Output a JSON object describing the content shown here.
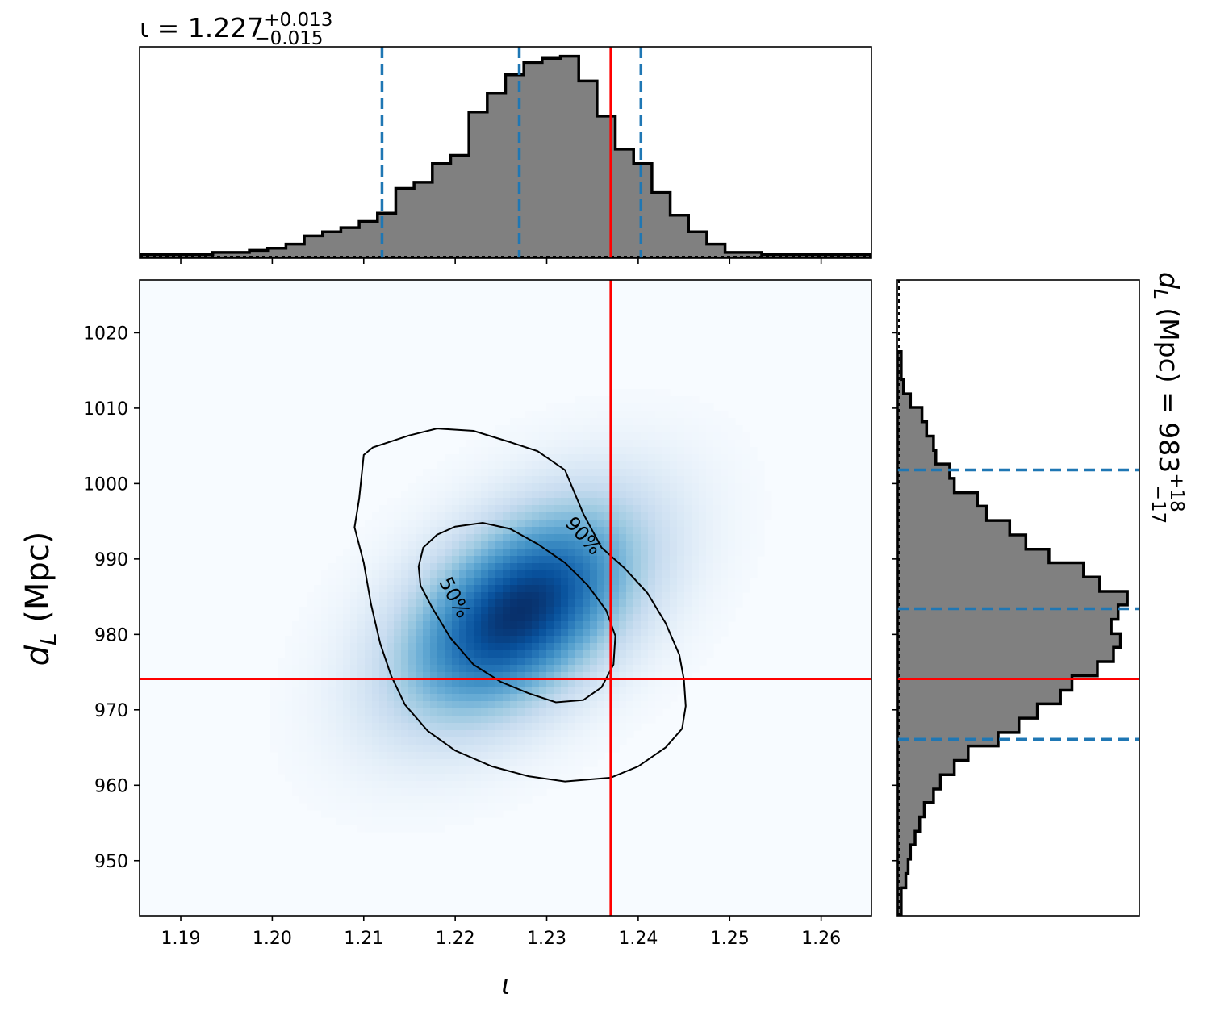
{
  "chart_data": {
    "type": "corner",
    "parameters": {
      "x": {
        "label": "ι",
        "median": 1.227,
        "plus": "+0.013",
        "minus": "−0.015",
        "title_main": "ι = 1.227"
      },
      "y": {
        "label_main": "d",
        "label_sub": "L",
        "label_unit": " (Mpc)",
        "median": 983,
        "plus": "+18",
        "minus": "−17",
        "title_main": "d",
        "title_sub": "L",
        "title_rest": " (Mpc) = 983"
      }
    },
    "xlim": [
      1.1855,
      1.2655
    ],
    "ylim": [
      942.7,
      1027.0
    ],
    "x_ticks": [
      1.19,
      1.2,
      1.21,
      1.22,
      1.23,
      1.24,
      1.25,
      1.26
    ],
    "x_tick_labels": [
      "1.19",
      "1.20",
      "1.21",
      "1.22",
      "1.23",
      "1.24",
      "1.25",
      "1.26"
    ],
    "y_ticks": [
      950,
      960,
      970,
      980,
      990,
      1000,
      1010,
      1020
    ],
    "y_tick_labels": [
      "950",
      "960",
      "970",
      "980",
      "990",
      "1000",
      "1010",
      "1020"
    ],
    "injection": {
      "x": 1.237,
      "y": 974.1,
      "color": "#ff0000"
    },
    "credible_lines_x": [
      1.212,
      1.227,
      1.2403
    ],
    "credible_lines_y": [
      966.1,
      983.4,
      1001.8
    ],
    "credible_color": "#1f77b4",
    "hist_color": "#808080",
    "density_colormap": "Blues",
    "density_mode": {
      "x": 1.227,
      "y": 983.0
    },
    "contours": [
      {
        "label": "50%",
        "points": [
          [
            1.216,
            989.0
          ],
          [
            1.2165,
            991.5
          ],
          [
            1.218,
            993.2
          ],
          [
            1.22,
            994.3
          ],
          [
            1.223,
            994.8
          ],
          [
            1.226,
            994.0
          ],
          [
            1.229,
            992.0
          ],
          [
            1.232,
            989.5
          ],
          [
            1.2345,
            986.5
          ],
          [
            1.2365,
            983.2
          ],
          [
            1.2375,
            979.8
          ],
          [
            1.2373,
            976.0
          ],
          [
            1.236,
            973.0
          ],
          [
            1.234,
            971.3
          ],
          [
            1.231,
            971.0
          ],
          [
            1.228,
            972.2
          ],
          [
            1.225,
            973.7
          ],
          [
            1.222,
            976.0
          ],
          [
            1.2195,
            979.5
          ],
          [
            1.2175,
            983.5
          ],
          [
            1.2162,
            986.5
          ]
        ]
      },
      {
        "label": "90%",
        "points": [
          [
            1.21,
            1003.8
          ],
          [
            1.211,
            1004.8
          ],
          [
            1.215,
            1006.4
          ],
          [
            1.218,
            1007.3
          ],
          [
            1.222,
            1007.0
          ],
          [
            1.226,
            1005.5
          ],
          [
            1.229,
            1004.3
          ],
          [
            1.232,
            1001.8
          ],
          [
            1.234,
            996.0
          ],
          [
            1.236,
            991.5
          ],
          [
            1.2385,
            988.8
          ],
          [
            1.241,
            985.5
          ],
          [
            1.243,
            981.5
          ],
          [
            1.2445,
            977.3
          ],
          [
            1.245,
            974.0
          ],
          [
            1.2452,
            970.5
          ],
          [
            1.2448,
            967.5
          ],
          [
            1.243,
            965.0
          ],
          [
            1.24,
            962.5
          ],
          [
            1.237,
            961.0
          ],
          [
            1.232,
            960.5
          ],
          [
            1.228,
            961.2
          ],
          [
            1.224,
            962.5
          ],
          [
            1.22,
            964.6
          ],
          [
            1.217,
            967.2
          ],
          [
            1.2145,
            970.7
          ],
          [
            1.213,
            974.5
          ],
          [
            1.2118,
            978.8
          ],
          [
            1.2108,
            984.0
          ],
          [
            1.21,
            989.5
          ],
          [
            1.209,
            994.2
          ],
          [
            1.2095,
            998.0
          ]
        ]
      }
    ],
    "x_hist": {
      "bin_edges": [
        1.1855,
        1.1875,
        1.1895,
        1.1915,
        1.1935,
        1.1955,
        1.1975,
        1.1995,
        1.2015,
        1.2035,
        1.2055,
        1.2075,
        1.2095,
        1.2115,
        1.2135,
        1.2155,
        1.2175,
        1.2195,
        1.2215,
        1.2235,
        1.2255,
        1.2275,
        1.2295,
        1.2315,
        1.2335,
        1.2355,
        1.2375,
        1.2395,
        1.2415,
        1.2435,
        1.2455,
        1.2475,
        1.2495,
        1.2515,
        1.2535,
        1.2555,
        1.2575,
        1.2595,
        1.2615,
        1.2635,
        1.2655
      ],
      "counts": [
        0.01,
        0.01,
        0.01,
        0.01,
        0.02,
        0.02,
        0.03,
        0.04,
        0.06,
        0.1,
        0.12,
        0.14,
        0.17,
        0.21,
        0.33,
        0.36,
        0.45,
        0.49,
        0.7,
        0.79,
        0.88,
        0.94,
        0.96,
        0.97,
        0.85,
        0.68,
        0.52,
        0.45,
        0.31,
        0.2,
        0.12,
        0.06,
        0.02,
        0.02,
        0.01,
        0.01,
        0.01,
        0.01,
        0.01,
        0.01
      ]
    },
    "y_hist": {
      "bin_edges": [
        942.7,
        944.6,
        946.4,
        948.3,
        950.2,
        952.1,
        953.9,
        955.8,
        957.7,
        959.5,
        961.4,
        963.3,
        965.2,
        967.0,
        968.9,
        970.8,
        972.6,
        974.5,
        976.4,
        978.3,
        980.1,
        982.0,
        983.9,
        985.7,
        987.6,
        989.5,
        991.3,
        993.2,
        995.1,
        997.0,
        998.8,
        1000.7,
        1002.6,
        1004.4,
        1006.3,
        1008.2,
        1010.1,
        1011.9,
        1013.8,
        1015.7,
        1017.5
      ],
      "counts": [
        0.01,
        0.01,
        0.03,
        0.04,
        0.05,
        0.07,
        0.09,
        0.11,
        0.15,
        0.18,
        0.24,
        0.3,
        0.43,
        0.52,
        0.6,
        0.7,
        0.75,
        0.86,
        0.93,
        0.96,
        0.92,
        0.95,
        0.99,
        0.87,
        0.8,
        0.65,
        0.55,
        0.48,
        0.38,
        0.34,
        0.24,
        0.22,
        0.16,
        0.15,
        0.12,
        0.1,
        0.05,
        0.02,
        0.01,
        0.01
      ]
    }
  }
}
